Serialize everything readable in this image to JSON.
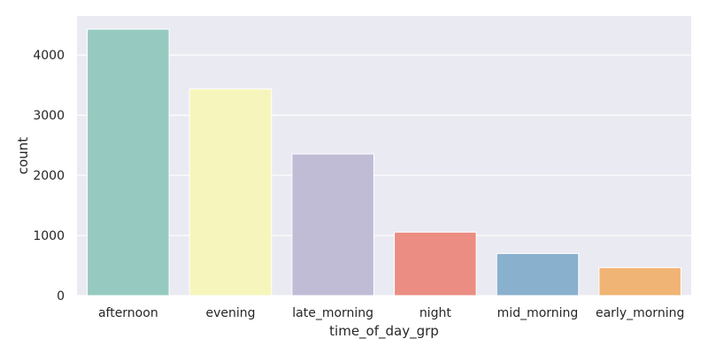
{
  "chart_data": {
    "type": "bar",
    "title": "",
    "xlabel": "time_of_day_grp",
    "ylabel": "count",
    "categories": [
      "afternoon",
      "evening",
      "late_morning",
      "night",
      "mid_morning",
      "early_morning"
    ],
    "values": [
      4430,
      3435,
      2355,
      1055,
      700,
      465
    ],
    "ylim": [
      0,
      4650
    ],
    "yticks": [
      0,
      1000,
      2000,
      3000,
      4000
    ],
    "grid": true,
    "background_color": "#EAEAF2",
    "grid_color": "#FFFFFF",
    "colors": [
      "#96CAC0",
      "#F6F6BC",
      "#C0BCD6",
      "#EB8D83",
      "#89B1CE",
      "#F0B474"
    ]
  }
}
